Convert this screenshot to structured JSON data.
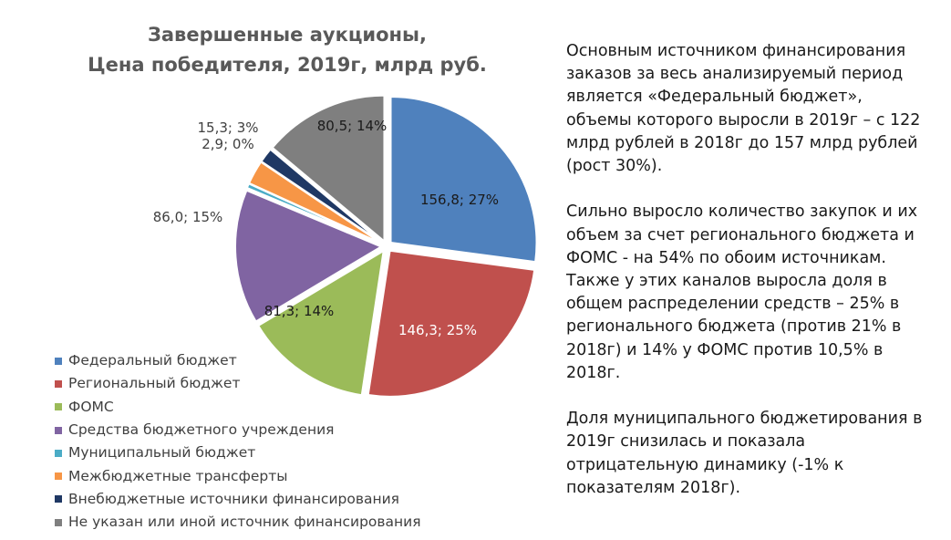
{
  "chart_data": {
    "type": "pie",
    "title_lines": [
      "Завершенные аукционы,",
      "Цена победителя, 2019г, млрд руб."
    ],
    "start_angle_deg": 0,
    "explode": true,
    "legend_position": "bottom-left",
    "slices": [
      {
        "name": "Федеральный бюджет",
        "value": 156.8,
        "label": "156,8; 27%",
        "color": "#4F81BD",
        "label_color": "#1a1a1a"
      },
      {
        "name": "Региональный бюджет",
        "value": 146.3,
        "label": "146,3; 25%",
        "color": "#C0504D",
        "label_color": "#ffffff"
      },
      {
        "name": "ФОМС",
        "value": 81.3,
        "label": "81,3; 14%",
        "color": "#9BBB59",
        "label_color": "#1a1a1a"
      },
      {
        "name": "Средства бюджетного учреждения",
        "value": 86.0,
        "label": "86,0; 15%",
        "color": "#8064A2",
        "label_color": "#404040"
      },
      {
        "name": "Муниципальный бюджет",
        "value": 2.9,
        "label": "2,9; 0%",
        "color": "#4BACC6",
        "label_color": "#404040"
      },
      {
        "name": "Межбюджетные трансферты",
        "value": 15.3,
        "label": "15,3; 3%",
        "color": "#F79646",
        "label_color": "#404040"
      },
      {
        "name": "Внебюджетные источники финансирования",
        "value": 9.5,
        "label": "",
        "color": "#1F3864",
        "label_color": "#404040"
      },
      {
        "name": "Не указан или иной источник финансирования",
        "value": 80.5,
        "label": "80,5; 14%",
        "color": "#7F7F7F",
        "label_color": "#1a1a1a"
      }
    ]
  },
  "commentary": [
    "Основным источником финансирования заказов за весь анализируемый период является «Федеральный бюджет», объемы которого выросли в 2019г – с 122 млрд рублей в 2018г до 157 млрд рублей (рост 30%).",
    "Сильно выросло количество закупок и их объем за счет регионального бюджета и ФОМС - на 54% по обоим источникам. Также у этих каналов выросла доля в общем распределении средств – 25% в регионального бюджета (против 21% в 2018г) и 14% у ФОМС против 10,5% в 2018г.",
    "Доля муниципального бюджетирования в 2019г снизилась и показала отрицательную динамику (-1% к показателям 2018г)."
  ]
}
